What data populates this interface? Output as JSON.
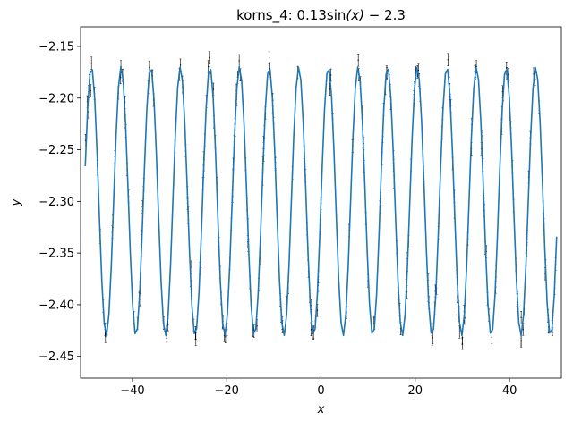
{
  "chart_data": {
    "type": "line",
    "title": "korns_4: 0.13sin(x) − 2.3",
    "title_parts": {
      "prefix": "korns_4: 0.13sin",
      "arg": "(x)",
      "suffix": " − 2.3"
    },
    "xlabel": "x",
    "ylabel": "y",
    "xlim": [
      -51,
      51
    ],
    "ylim": [
      -2.471,
      -2.131
    ],
    "x_ticks": [
      -40,
      -20,
      0,
      20,
      40
    ],
    "x_tick_labels": [
      "−40",
      "−20",
      "0",
      "20",
      "40"
    ],
    "y_ticks": [
      -2.45,
      -2.4,
      -2.35,
      -2.3,
      -2.25,
      -2.2,
      -2.15
    ],
    "y_tick_labels": [
      "−2.45",
      "−2.40",
      "−2.35",
      "−2.30",
      "−2.25",
      "−2.20",
      "−2.15"
    ],
    "grid": false,
    "legend": "none",
    "colors": {
      "line": "#1f77b4",
      "points": "#000000"
    },
    "series": [
      {
        "kind": "line",
        "function": {
          "amplitude": 0.13,
          "offset": -2.3
        },
        "x_range": [
          -50,
          50
        ],
        "samples": 200
      },
      {
        "kind": "errorbar",
        "x_range": [
          -50,
          50
        ],
        "count": 300,
        "yerr": 0.006
      }
    ]
  }
}
